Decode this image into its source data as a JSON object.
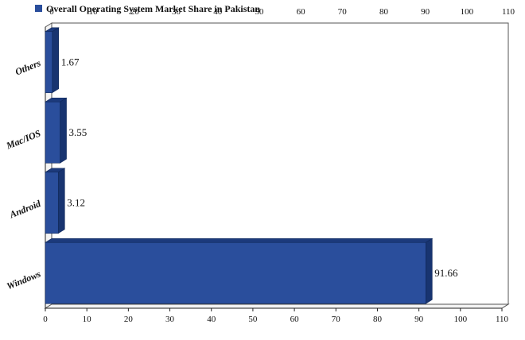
{
  "chart_data": {
    "type": "bar",
    "orientation": "horizontal",
    "three_d": true,
    "categories": [
      "Windows",
      "Android",
      "Mac/IOS",
      "Others"
    ],
    "series": [
      {
        "name": "Overall Operating System Market Share in Pakistan",
        "values": [
          91.66,
          3.12,
          3.55,
          1.67
        ]
      }
    ],
    "data_labels": [
      "91.66",
      "3.12",
      "3.55",
      "1.67"
    ],
    "xlim": [
      0,
      110
    ],
    "xticks": [
      0,
      10,
      20,
      30,
      40,
      50,
      60,
      70,
      80,
      90,
      100,
      110
    ],
    "tick_labels": [
      "0",
      "10",
      "20",
      "30",
      "40",
      "50",
      "60",
      "70",
      "80",
      "90",
      "100",
      "110"
    ],
    "grid": false,
    "legend_position": "top-left",
    "bar_color": "#2a4e9c",
    "bar_top_color": "#1c3a7c",
    "bar_side_color": "#183470"
  }
}
